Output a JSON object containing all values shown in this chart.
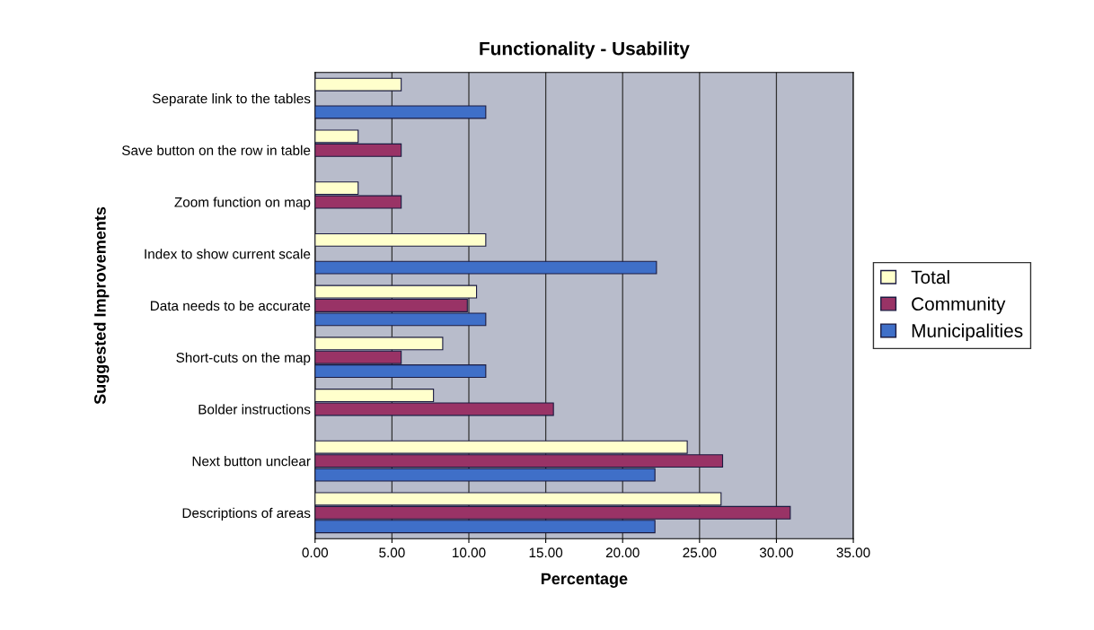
{
  "chart_data": {
    "type": "bar",
    "orientation": "horizontal",
    "title": "Functionality - Usability",
    "xlabel": "Percentage",
    "ylabel": "Suggested Improvements",
    "categories": [
      "Separate link to the tables",
      "Save button on the row in table",
      "Zoom function on map",
      "Index to show current scale",
      "Data needs to be accurate",
      "Short-cuts on the map",
      "Bolder instructions",
      "Next button unclear",
      "Descriptions of areas"
    ],
    "series": [
      {
        "name": "Total",
        "color": "#ffffcc",
        "values": [
          5.6,
          2.8,
          2.8,
          11.1,
          10.5,
          8.3,
          7.7,
          24.2,
          26.4
        ]
      },
      {
        "name": "Community",
        "color": "#993366",
        "values": [
          null,
          5.6,
          5.6,
          null,
          9.9,
          5.6,
          15.5,
          26.5,
          30.9
        ]
      },
      {
        "name": "Municipalities",
        "color": "#3f6fc8",
        "values": [
          11.1,
          null,
          null,
          22.2,
          11.1,
          11.1,
          null,
          22.1,
          22.1
        ]
      }
    ],
    "xlim": [
      0,
      35
    ],
    "xticks": [
      {
        "value": 0,
        "label": "0.00"
      },
      {
        "value": 5,
        "label": "5.00"
      },
      {
        "value": 10,
        "label": "10.00"
      },
      {
        "value": 15,
        "label": "15.00"
      },
      {
        "value": 20,
        "label": "20.00"
      },
      {
        "value": 25,
        "label": "25.00"
      },
      {
        "value": 30,
        "label": "30.00"
      },
      {
        "value": 35,
        "label": "35.00"
      }
    ],
    "grid": "x",
    "legend": "right"
  }
}
